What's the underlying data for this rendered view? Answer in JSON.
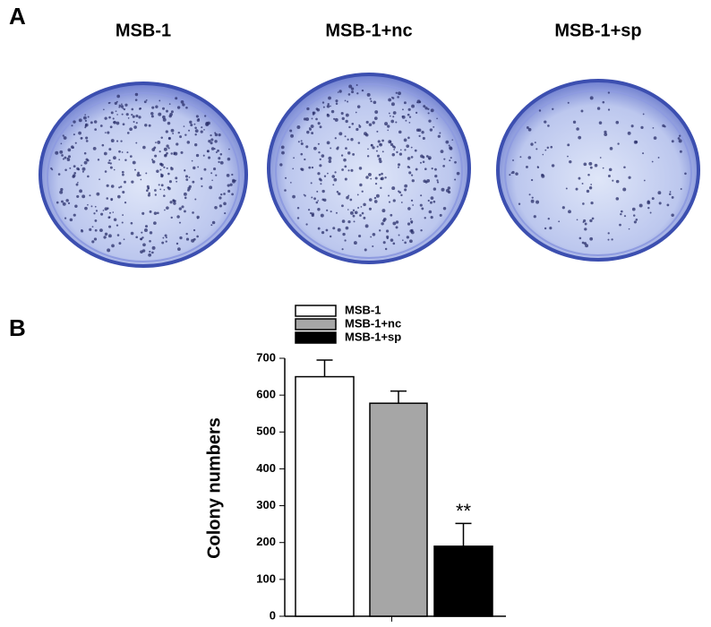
{
  "panel_a": {
    "label": "A",
    "plates": [
      "MSB-1",
      "MSB-1+nc",
      "MSB-1+sp"
    ]
  },
  "chart_data": {
    "type": "bar",
    "panel_label": "B",
    "ylabel": "Colony numbers",
    "series": [
      {
        "name": "MSB-1",
        "color": "#ffffff",
        "values": [
          650
        ],
        "errors": [
          45
        ]
      },
      {
        "name": "MSB-1+nc",
        "color": "#a6a6a6",
        "values": [
          578
        ],
        "errors": [
          33
        ]
      },
      {
        "name": "MSB-1+sp",
        "color": "#000000",
        "values": [
          190
        ],
        "errors": [
          62
        ],
        "annotation": "**"
      }
    ],
    "ylim": [
      0,
      700
    ],
    "yticks": [
      0,
      100,
      200,
      300,
      400,
      500,
      600,
      700
    ]
  }
}
